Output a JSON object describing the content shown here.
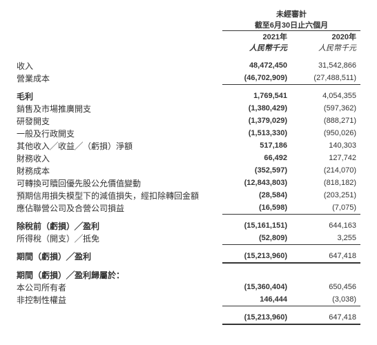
{
  "header": {
    "audit": "未經審計",
    "period": "截至6月30日止六個月",
    "year1": "2021年",
    "year2": "2020年",
    "unit1": "人民幣千元",
    "unit2": "人民幣千元"
  },
  "rows": {
    "revenue": {
      "label": "收入",
      "v1": "48,472,450",
      "v2": "31,542,866"
    },
    "cost": {
      "label": "營業成本",
      "v1": "(46,702,909)",
      "v2": "(27,488,511)"
    },
    "gross": {
      "label": "毛利",
      "v1": "1,769,541",
      "v2": "4,054,355"
    },
    "selling": {
      "label": "銷售及市場推廣開支",
      "v1": "(1,380,429)",
      "v2": "(597,362)"
    },
    "rd": {
      "label": "研發開支",
      "v1": "(1,379,029)",
      "v2": "(888,271)"
    },
    "admin": {
      "label": "一般及行政開支",
      "v1": "(1,513,330)",
      "v2": "(950,026)"
    },
    "other": {
      "label": "其他收入╱收益╱（虧損）淨額",
      "v1": "517,186",
      "v2": "140,303"
    },
    "finincome": {
      "label": "財務收入",
      "v1": "66,492",
      "v2": "127,742"
    },
    "fincost": {
      "label": "財務成本",
      "v1": "(352,597)",
      "v2": "(214,070)"
    },
    "convpref": {
      "label": "可轉換可贖回優先股公允價值變動",
      "v1": "(12,843,803)",
      "v2": "(818,182)"
    },
    "credit": {
      "label": "預期信用損失模型下的減值損失，經扣除轉回金額",
      "v1": "(28,584)",
      "v2": "(203,251)"
    },
    "assoc": {
      "label": "應佔聯營公司及合營公司損益",
      "v1": "(16,598)",
      "v2": "(7,075)"
    },
    "pbt": {
      "label": "除稅前（虧損）╱盈利",
      "v1": "(15,161,151)",
      "v2": "644,163"
    },
    "tax": {
      "label": "所得稅（開支）╱抵免",
      "v1": "(52,809)",
      "v2": "3,255"
    },
    "netprofit": {
      "label": "期間（虧損）╱盈利",
      "v1": "(15,213,960)",
      "v2": "647,418"
    },
    "attrib": {
      "label": "期間（虧損）╱盈利歸屬於："
    },
    "owners": {
      "label": "本公司所有者",
      "v1": "(15,360,404)",
      "v2": "650,456"
    },
    "nci": {
      "label": "非控制性權益",
      "v1": "146,444",
      "v2": "(3,038)"
    },
    "total": {
      "v1": "(15,213,960)",
      "v2": "647,418"
    }
  }
}
